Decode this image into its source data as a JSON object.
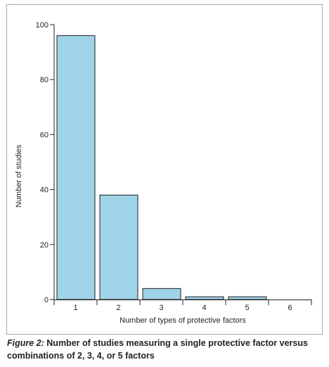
{
  "chart_data": {
    "type": "bar",
    "categories": [
      "1",
      "2",
      "3",
      "4",
      "5",
      "6"
    ],
    "values": [
      96,
      38,
      4,
      1,
      1,
      0
    ],
    "xlabel": "Number of types of protective factors",
    "ylabel": "Number of studies",
    "ylim": [
      0,
      100
    ],
    "yticks": [
      0,
      20,
      40,
      60,
      80,
      100
    ],
    "bar_color": "#9fd3e8",
    "grid": false,
    "legend": "none"
  },
  "caption": {
    "label": "Figure 2:",
    "text": "Number of studies measuring a single protective factor versus combinations of 2, 3, 4, or 5 factors"
  }
}
